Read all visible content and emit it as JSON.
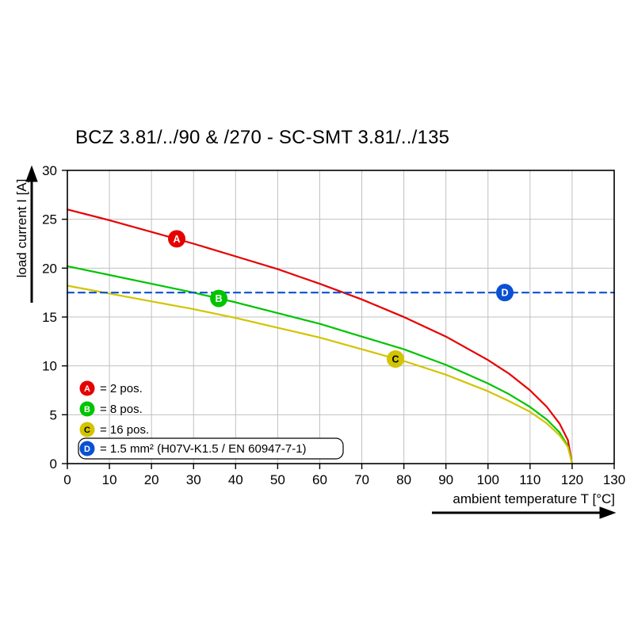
{
  "chart_data": {
    "type": "line",
    "title": "BCZ 3.81/../90 & /270 - SC-SMT 3.81/../135",
    "xlabel": "ambient temperature T [°C]",
    "ylabel": "load current I [A]",
    "xlim": [
      0,
      130
    ],
    "ylim": [
      0,
      30
    ],
    "xticks": [
      0,
      10,
      20,
      30,
      40,
      50,
      60,
      70,
      80,
      90,
      100,
      110,
      120,
      130
    ],
    "yticks": [
      0,
      5,
      10,
      15,
      20,
      25,
      30
    ],
    "grid": true,
    "grid_color": "#c0c0c0",
    "legend_position": "inside bottom-left",
    "series": [
      {
        "id": "A",
        "legend_label": "= 2 pos.",
        "color": "#e60000",
        "letter_color": "#ffffff",
        "dash": null,
        "marker_at": [
          26,
          23
        ],
        "points": [
          [
            0,
            26
          ],
          [
            10,
            24.9
          ],
          [
            20,
            23.7
          ],
          [
            30,
            22.5
          ],
          [
            40,
            21.2
          ],
          [
            50,
            19.9
          ],
          [
            60,
            18.4
          ],
          [
            70,
            16.8
          ],
          [
            80,
            15
          ],
          [
            90,
            13
          ],
          [
            100,
            10.6
          ],
          [
            105,
            9.2
          ],
          [
            110,
            7.5
          ],
          [
            114,
            5.8
          ],
          [
            117,
            4.1
          ],
          [
            119,
            2.4
          ],
          [
            120,
            0
          ]
        ]
      },
      {
        "id": "B",
        "legend_label": "= 8 pos.",
        "color": "#00c400",
        "letter_color": "#ffffff",
        "dash": null,
        "marker_at": [
          36,
          16.9
        ],
        "points": [
          [
            0,
            20.2
          ],
          [
            10,
            19.3
          ],
          [
            20,
            18.4
          ],
          [
            30,
            17.5
          ],
          [
            40,
            16.5
          ],
          [
            50,
            15.4
          ],
          [
            60,
            14.3
          ],
          [
            70,
            13
          ],
          [
            80,
            11.7
          ],
          [
            90,
            10.1
          ],
          [
            100,
            8.2
          ],
          [
            105,
            7.1
          ],
          [
            110,
            5.8
          ],
          [
            114,
            4.5
          ],
          [
            117,
            3.2
          ],
          [
            119,
            1.8
          ],
          [
            120,
            0
          ]
        ]
      },
      {
        "id": "C",
        "legend_label": "= 16 pos.",
        "color": "#d2c400",
        "letter_color": "#000000",
        "dash": null,
        "marker_at": [
          78,
          10.7
        ],
        "points": [
          [
            0,
            18.2
          ],
          [
            10,
            17.4
          ],
          [
            20,
            16.6
          ],
          [
            30,
            15.8
          ],
          [
            40,
            14.9
          ],
          [
            50,
            13.9
          ],
          [
            60,
            12.9
          ],
          [
            70,
            11.7
          ],
          [
            80,
            10.5
          ],
          [
            90,
            9.1
          ],
          [
            100,
            7.4
          ],
          [
            105,
            6.4
          ],
          [
            110,
            5.3
          ],
          [
            114,
            4.1
          ],
          [
            117,
            2.9
          ],
          [
            119,
            1.7
          ],
          [
            120,
            0
          ]
        ]
      },
      {
        "id": "D",
        "legend_label": "= 1.5 mm² (H07V-K1.5 / EN 60947-7-1)",
        "color": "#0a50d2",
        "letter_color": "#ffffff",
        "dash": "8,6",
        "boxed_legend": true,
        "marker_at": [
          104,
          17.5
        ],
        "points": [
          [
            0,
            17.5
          ],
          [
            130,
            17.5
          ]
        ]
      }
    ]
  }
}
